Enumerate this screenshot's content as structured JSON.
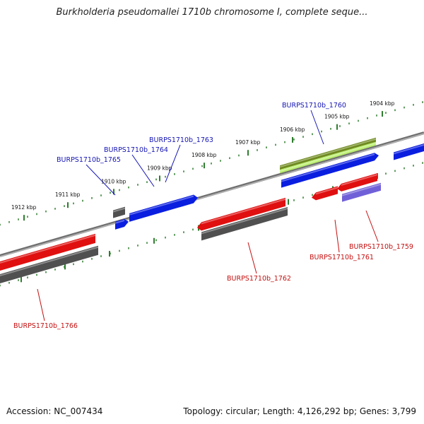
{
  "title": "Burkholderia pseudomallei 1710b chromosome I, complete seque...",
  "footer": {
    "accession": "Accession: NC_007434",
    "summary": "Topology: circular; Length: 4,126,292 bp; Genes: 3,799"
  },
  "colors": {
    "backbone": "#8a8a8a",
    "tick": "#2e7d2e",
    "forward_gene": "#0a1ee0",
    "reverse_gene": "#e01010",
    "gray_feature": "#505050",
    "olive_feature": "#6f8a1f",
    "lime_feature": "#b9ef6a",
    "purple_feature": "#7060d8",
    "label_blue": "#1515b5",
    "label_red": "#c41010"
  },
  "ticks": [
    {
      "label": "1904 kbp"
    },
    {
      "label": "1905 kbp"
    },
    {
      "label": "1906 kbp"
    },
    {
      "label": "1907 kbp"
    },
    {
      "label": "1908 kbp"
    },
    {
      "label": "1909 kbp"
    },
    {
      "label": "1910 kbp"
    },
    {
      "label": "1911 kbp"
    },
    {
      "label": "1912 kbp"
    }
  ],
  "gene_labels": [
    {
      "text": "BURPS1710b_1760",
      "color": "blue"
    },
    {
      "text": "BURPS1710b_1763",
      "color": "blue"
    },
    {
      "text": "BURPS1710b_1764",
      "color": "blue"
    },
    {
      "text": "BURPS1710b_1765",
      "color": "blue"
    },
    {
      "text": "BURPS1710b_1759",
      "color": "red"
    },
    {
      "text": "BURPS1710b_1761",
      "color": "red"
    },
    {
      "text": "BURPS1710b_1762",
      "color": "red"
    },
    {
      "text": "BURPS1710b_1766",
      "color": "red"
    }
  ]
}
